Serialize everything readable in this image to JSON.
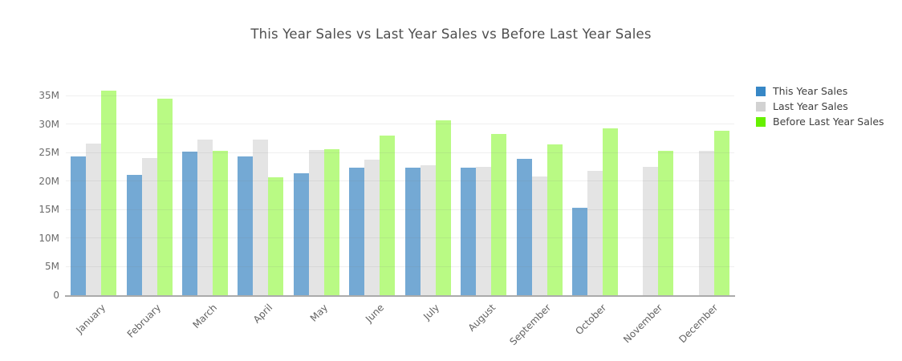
{
  "chart_data": {
    "type": "bar",
    "title": "This Year Sales vs Last Year Sales vs Before Last Year Sales",
    "categories": [
      "January",
      "February",
      "March",
      "April",
      "May",
      "June",
      "July",
      "August",
      "September",
      "October",
      "November",
      "December"
    ],
    "series": [
      {
        "name": "This Year Sales",
        "legend_color": "#3787C6",
        "bar_color": "#74A9D4",
        "values": [
          24.3,
          21.1,
          25.1,
          24.3,
          21.3,
          22.3,
          22.4,
          22.4,
          23.9,
          15.3,
          null,
          null
        ]
      },
      {
        "name": "Last Year Sales",
        "legend_color": "#D2D2D2",
        "bar_color": "#E4E4E4",
        "values": [
          26.5,
          24.1,
          27.3,
          27.2,
          25.5,
          23.8,
          22.8,
          22.5,
          20.8,
          21.8,
          22.5,
          25.3
        ]
      },
      {
        "name": "Before Last Year Sales",
        "legend_color": "#66F000",
        "bar_color": "#B9FA84",
        "values": [
          35.9,
          34.4,
          25.3,
          20.6,
          25.6,
          28.0,
          30.7,
          28.2,
          26.4,
          29.2,
          25.3,
          28.8
        ]
      }
    ],
    "values_unit": "M",
    "y_ticks": [
      {
        "value": 0,
        "label": "0"
      },
      {
        "value": 5,
        "label": "5M"
      },
      {
        "value": 10,
        "label": "10M"
      },
      {
        "value": 15,
        "label": "15M"
      },
      {
        "value": 20,
        "label": "20M"
      },
      {
        "value": 25,
        "label": "25M"
      },
      {
        "value": 30,
        "label": "30M"
      },
      {
        "value": 35,
        "label": "35M"
      }
    ],
    "ylim": [
      0,
      38.4
    ],
    "grid": "horizontal",
    "legend_position": "right",
    "x_label_rotation": -45
  }
}
